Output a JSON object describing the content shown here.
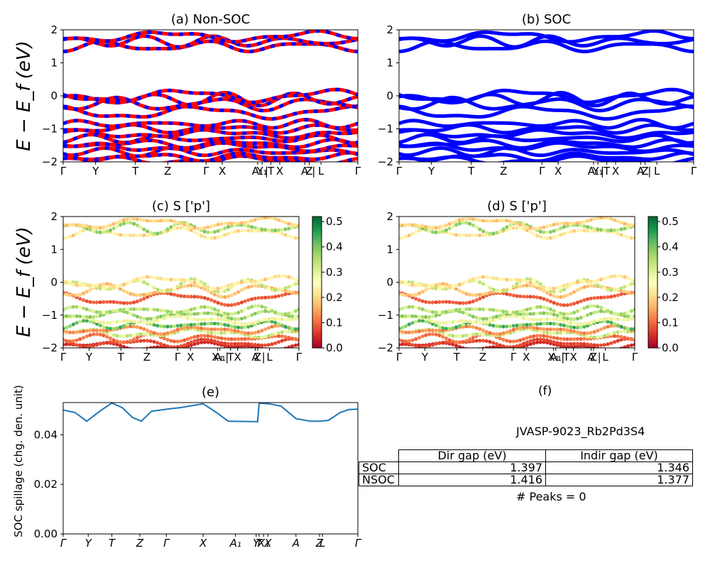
{
  "ylabel_energy": "E − E_f (eV)",
  "chart_data": [
    {
      "id": "a",
      "type": "line",
      "title": "(a) Non-SOC",
      "ylim": [
        -2,
        2
      ],
      "yticks": [
        -2,
        -1,
        0,
        1,
        2
      ],
      "kpath": [
        "Γ",
        "Y",
        "T",
        "Z",
        "Γ",
        "X",
        "A₁",
        "Y₁",
        "|",
        "T",
        "X",
        "A",
        "Z",
        "|",
        "L",
        "Γ"
      ],
      "kpath_positions": [
        0,
        0.11,
        0.245,
        0.355,
        0.485,
        0.54,
        0.66,
        0.675,
        0.69,
        0.705,
        0.735,
        0.82,
        0.835,
        0.85,
        0.875,
        1
      ],
      "series_colors": [
        "#ff0000",
        "#0000ff"
      ],
      "bands": [
        -1.95,
        -1.85,
        -1.7,
        -1.55,
        -1.45,
        -1.3,
        -1.15,
        -1.0,
        -0.85,
        -0.5,
        -0.25,
        -0.1,
        0.0,
        1.5,
        1.65,
        1.8
      ]
    },
    {
      "id": "b",
      "type": "line",
      "title": "(b) SOC",
      "ylim": [
        -2,
        2
      ],
      "yticks": [
        -2,
        -1,
        0,
        1,
        2
      ],
      "kpath": [
        "Γ",
        "Y",
        "T",
        "Z",
        "Γ",
        "X",
        "A₁",
        "Y₁",
        "|",
        "T",
        "X",
        "A",
        "Z",
        "|",
        "L",
        "Γ"
      ],
      "kpath_positions": [
        0,
        0.11,
        0.245,
        0.355,
        0.485,
        0.54,
        0.66,
        0.675,
        0.69,
        0.705,
        0.735,
        0.82,
        0.835,
        0.85,
        0.875,
        1
      ],
      "series_colors": [
        "#0000ff"
      ],
      "bands": [
        -1.95,
        -1.85,
        -1.7,
        -1.55,
        -1.45,
        -1.3,
        -1.15,
        -1.0,
        -0.85,
        -0.5,
        -0.25,
        -0.1,
        0.0,
        1.5,
        1.65,
        1.8
      ]
    },
    {
      "id": "c",
      "type": "scatter",
      "title": "(c)  S ['p']",
      "ylim": [
        -2,
        2
      ],
      "yticks": [
        -2,
        -1,
        0,
        1,
        2
      ],
      "kpath": [
        "Γ",
        "Y",
        "T",
        "Z",
        "Γ",
        "X",
        "X₁",
        "A₁",
        "|",
        "T",
        "X",
        "A",
        "Z",
        "|",
        "L",
        "Γ"
      ],
      "kpath_positions": [
        0,
        0.11,
        0.245,
        0.355,
        0.485,
        0.54,
        0.655,
        0.665,
        0.695,
        0.71,
        0.74,
        0.815,
        0.825,
        0.85,
        0.875,
        1
      ],
      "colorbar": {
        "min": 0.0,
        "max": 0.52,
        "ticks": [
          0.0,
          0.1,
          0.2,
          0.3,
          0.4,
          0.5
        ],
        "colormap": "RdYlGn"
      },
      "bands": [
        -1.95,
        -1.85,
        -1.7,
        -1.55,
        -1.45,
        -1.3,
        -1.15,
        -1.0,
        -0.85,
        -0.5,
        -0.25,
        -0.1,
        0.0,
        1.5,
        1.65,
        1.8
      ],
      "band_weights": [
        0.05,
        0.08,
        0.12,
        0.35,
        0.15,
        0.45,
        0.3,
        0.4,
        0.38,
        0.1,
        0.2,
        0.35,
        0.25,
        0.25,
        0.4,
        0.22
      ]
    },
    {
      "id": "d",
      "type": "scatter",
      "title": "(d) S ['p']",
      "ylim": [
        -2,
        2
      ],
      "yticks": [
        -2,
        -1,
        0,
        1,
        2
      ],
      "kpath": [
        "Γ",
        "Y",
        "T",
        "Z",
        "Γ",
        "X",
        "X₁",
        "A₁",
        "|",
        "T",
        "X",
        "A",
        "Z",
        "|",
        "L",
        "Γ"
      ],
      "kpath_positions": [
        0,
        0.11,
        0.245,
        0.355,
        0.485,
        0.54,
        0.655,
        0.665,
        0.695,
        0.71,
        0.74,
        0.815,
        0.825,
        0.85,
        0.875,
        1
      ],
      "colorbar": {
        "min": 0.0,
        "max": 0.52,
        "ticks": [
          0.0,
          0.1,
          0.2,
          0.3,
          0.4,
          0.5
        ],
        "colormap": "RdYlGn"
      },
      "bands": [
        -1.95,
        -1.85,
        -1.7,
        -1.55,
        -1.45,
        -1.3,
        -1.15,
        -1.0,
        -0.85,
        -0.5,
        -0.25,
        -0.1,
        0.0,
        1.5,
        1.65,
        1.8
      ],
      "band_weights": [
        0.05,
        0.08,
        0.12,
        0.35,
        0.15,
        0.45,
        0.3,
        0.4,
        0.38,
        0.1,
        0.2,
        0.35,
        0.25,
        0.25,
        0.4,
        0.22
      ]
    },
    {
      "id": "e",
      "type": "line",
      "title": "(e)",
      "ylabel": "SOC spillage (chg. den. unit)",
      "ylim": [
        0,
        0.053
      ],
      "yticks": [
        0.0,
        0.02,
        0.04
      ],
      "ytick_labels": [
        "0.00",
        "0.02",
        "0.04"
      ],
      "kpath": [
        "Γ",
        "Y",
        "T",
        "Z",
        "Γ",
        "X",
        "A₁",
        "Y",
        "T",
        "X₁",
        "X",
        "A",
        "Z",
        "L",
        "Γ"
      ],
      "kpath_positions": [
        0,
        0.085,
        0.165,
        0.26,
        0.35,
        0.475,
        0.585,
        0.655,
        0.665,
        0.68,
        0.695,
        0.79,
        0.87,
        0.88,
        1
      ],
      "color": "#1f77b4",
      "x": [
        0,
        0.04,
        0.08,
        0.13,
        0.165,
        0.2,
        0.235,
        0.265,
        0.3,
        0.35,
        0.4,
        0.475,
        0.52,
        0.56,
        0.66,
        0.665,
        0.7,
        0.74,
        0.79,
        0.84,
        0.87,
        0.9,
        0.94,
        0.97,
        1
      ],
      "y": [
        0.05,
        0.049,
        0.0455,
        0.05,
        0.0528,
        0.051,
        0.047,
        0.0455,
        0.0495,
        0.0503,
        0.051,
        0.0525,
        0.049,
        0.0455,
        0.0453,
        0.0528,
        0.0525,
        0.0515,
        0.0465,
        0.0455,
        0.0455,
        0.0458,
        0.049,
        0.0502,
        0.0503
      ]
    }
  ],
  "panel_f": {
    "title": "(f)",
    "material": "JVASP-9023_Rb2Pd3S4",
    "table": {
      "headers": [
        "",
        "Dir gap (eV)",
        "Indir gap (eV)"
      ],
      "rows": [
        {
          "label": "SOC",
          "dir": "1.397",
          "indir": "1.346"
        },
        {
          "label": "NSOC",
          "dir": "1.416",
          "indir": "1.377"
        }
      ]
    },
    "peaks": "# Peaks = 0"
  }
}
